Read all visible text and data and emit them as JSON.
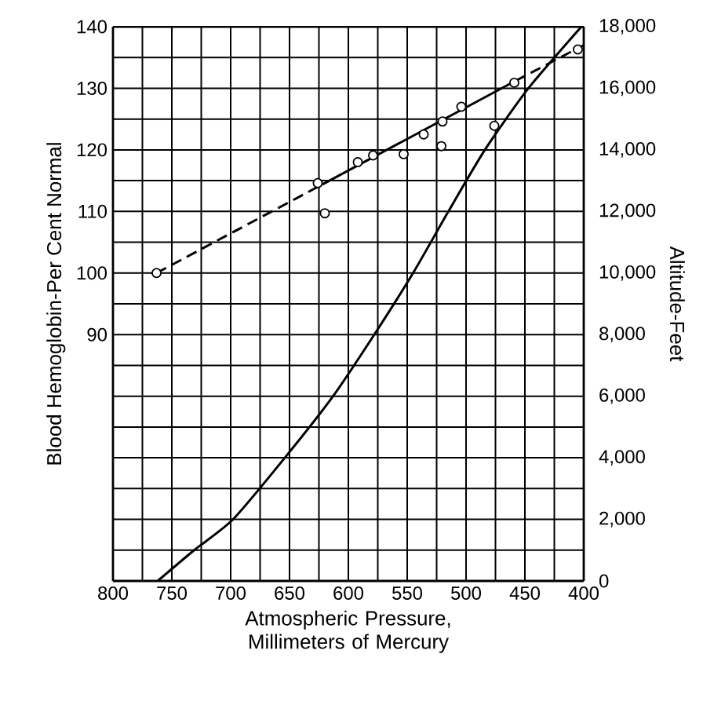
{
  "chart_data": {
    "type": "line",
    "xlabel": "Atmospheric Pressure, Millimeters of Mercury",
    "ylabel": "Blood Hemoglobin-Per Cent Normal",
    "y2label": "Altitude-Feet",
    "xlim": [
      800,
      400
    ],
    "xticks": [
      800,
      {
        "value": 775,
        "label": null
      },
      750,
      {
        "value": 725,
        "label": null
      },
      700,
      {
        "value": 675,
        "label": null
      },
      650,
      {
        "value": 625,
        "label": null
      },
      600,
      {
        "value": 575,
        "label": null
      },
      550,
      {
        "value": 525,
        "label": null
      },
      500,
      {
        "value": 475,
        "label": null
      },
      450,
      {
        "value": 425,
        "label": null
      },
      400
    ],
    "ylim": [
      50,
      140
    ],
    "yticks": [
      90,
      100,
      110,
      120,
      130,
      140
    ],
    "y2lim": [
      0,
      18000
    ],
    "y2ticks": [
      0,
      {
        "value": 1000,
        "label": null
      },
      {
        "value": 2000,
        "label": "2,000"
      },
      {
        "value": 3000,
        "label": null
      },
      {
        "value": 4000,
        "label": "4,000"
      },
      {
        "value": 5000,
        "label": null
      },
      {
        "value": 6000,
        "label": "6,000"
      },
      {
        "value": 7000,
        "label": null
      },
      {
        "value": 8000,
        "label": "8,000"
      },
      {
        "value": 9000,
        "label": null
      },
      {
        "value": 10000,
        "label": "10,000"
      },
      {
        "value": 11000,
        "label": null
      },
      {
        "value": 12000,
        "label": "12,000"
      },
      {
        "value": 13000,
        "label": null
      },
      {
        "value": 14000,
        "label": "14,000"
      },
      {
        "value": 15000,
        "label": null
      },
      {
        "value": 16000,
        "label": "16,000"
      },
      {
        "value": 17000,
        "label": null
      },
      {
        "value": 18000,
        "label": "18,000"
      }
    ],
    "grid": true,
    "series": [
      {
        "axis": "y2",
        "color": "#000000",
        "line_style": "solid",
        "x": [
          762,
          731,
          698,
          654,
          613,
          578,
          545,
          515,
          484,
          447,
          402
        ],
        "values": [
          0,
          1000,
          2000,
          4000,
          6000,
          8000,
          10000,
          12000,
          14000,
          16000,
          18000
        ]
      },
      {
        "color": "#000000",
        "line_style": "dashed",
        "x": [
          763,
          622
        ],
        "values": [
          100,
          114.4
        ]
      },
      {
        "color": "#000000",
        "line_style": "solid",
        "x": [
          622,
          458
        ],
        "values": [
          114.4,
          131.2
        ]
      },
      {
        "color": "#000000",
        "line_style": "dashed",
        "x": [
          458,
          400
        ],
        "values": [
          131.2,
          137
        ]
      },
      {
        "type": "scatter",
        "color": "#000000",
        "marker": "circle",
        "x": [
          763,
          626,
          620,
          592,
          579,
          553,
          536,
          520,
          521,
          504,
          476,
          459,
          405
        ],
        "values": [
          100,
          114.6,
          109.7,
          118,
          119.1,
          119.3,
          122.5,
          124.6,
          120.6,
          127,
          123.9,
          130.9,
          136.3
        ]
      }
    ]
  }
}
